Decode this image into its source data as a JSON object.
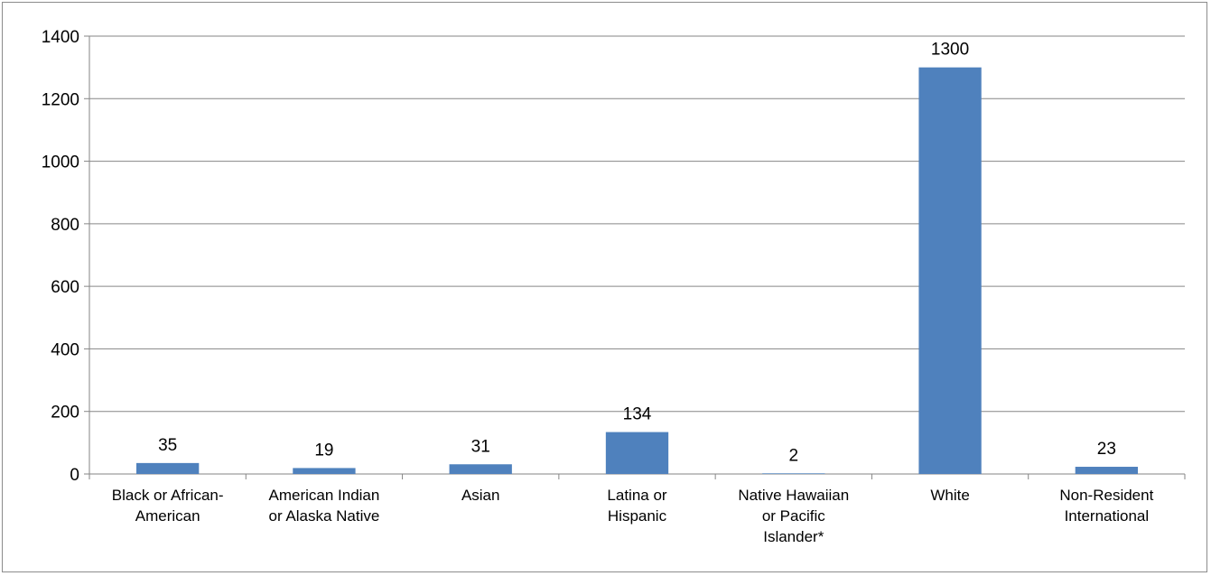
{
  "chart_data": {
    "type": "bar",
    "title": "",
    "xlabel": "",
    "ylabel": "",
    "ylim": [
      0,
      1400
    ],
    "yticks": [
      0,
      200,
      400,
      600,
      800,
      1000,
      1200,
      1400
    ],
    "grid": true,
    "legend": "none",
    "bar_color": "#4f81bd",
    "categories": [
      [
        "Black or African-",
        "American"
      ],
      [
        "American Indian",
        "or Alaska Native"
      ],
      [
        "Asian"
      ],
      [
        "Latina or",
        "Hispanic"
      ],
      [
        "Native Hawaiian",
        "or Pacific",
        "Islander*"
      ],
      [
        "White"
      ],
      [
        "Non-Resident",
        "International"
      ]
    ],
    "values": [
      35,
      19,
      31,
      134,
      2,
      1300,
      23
    ]
  }
}
